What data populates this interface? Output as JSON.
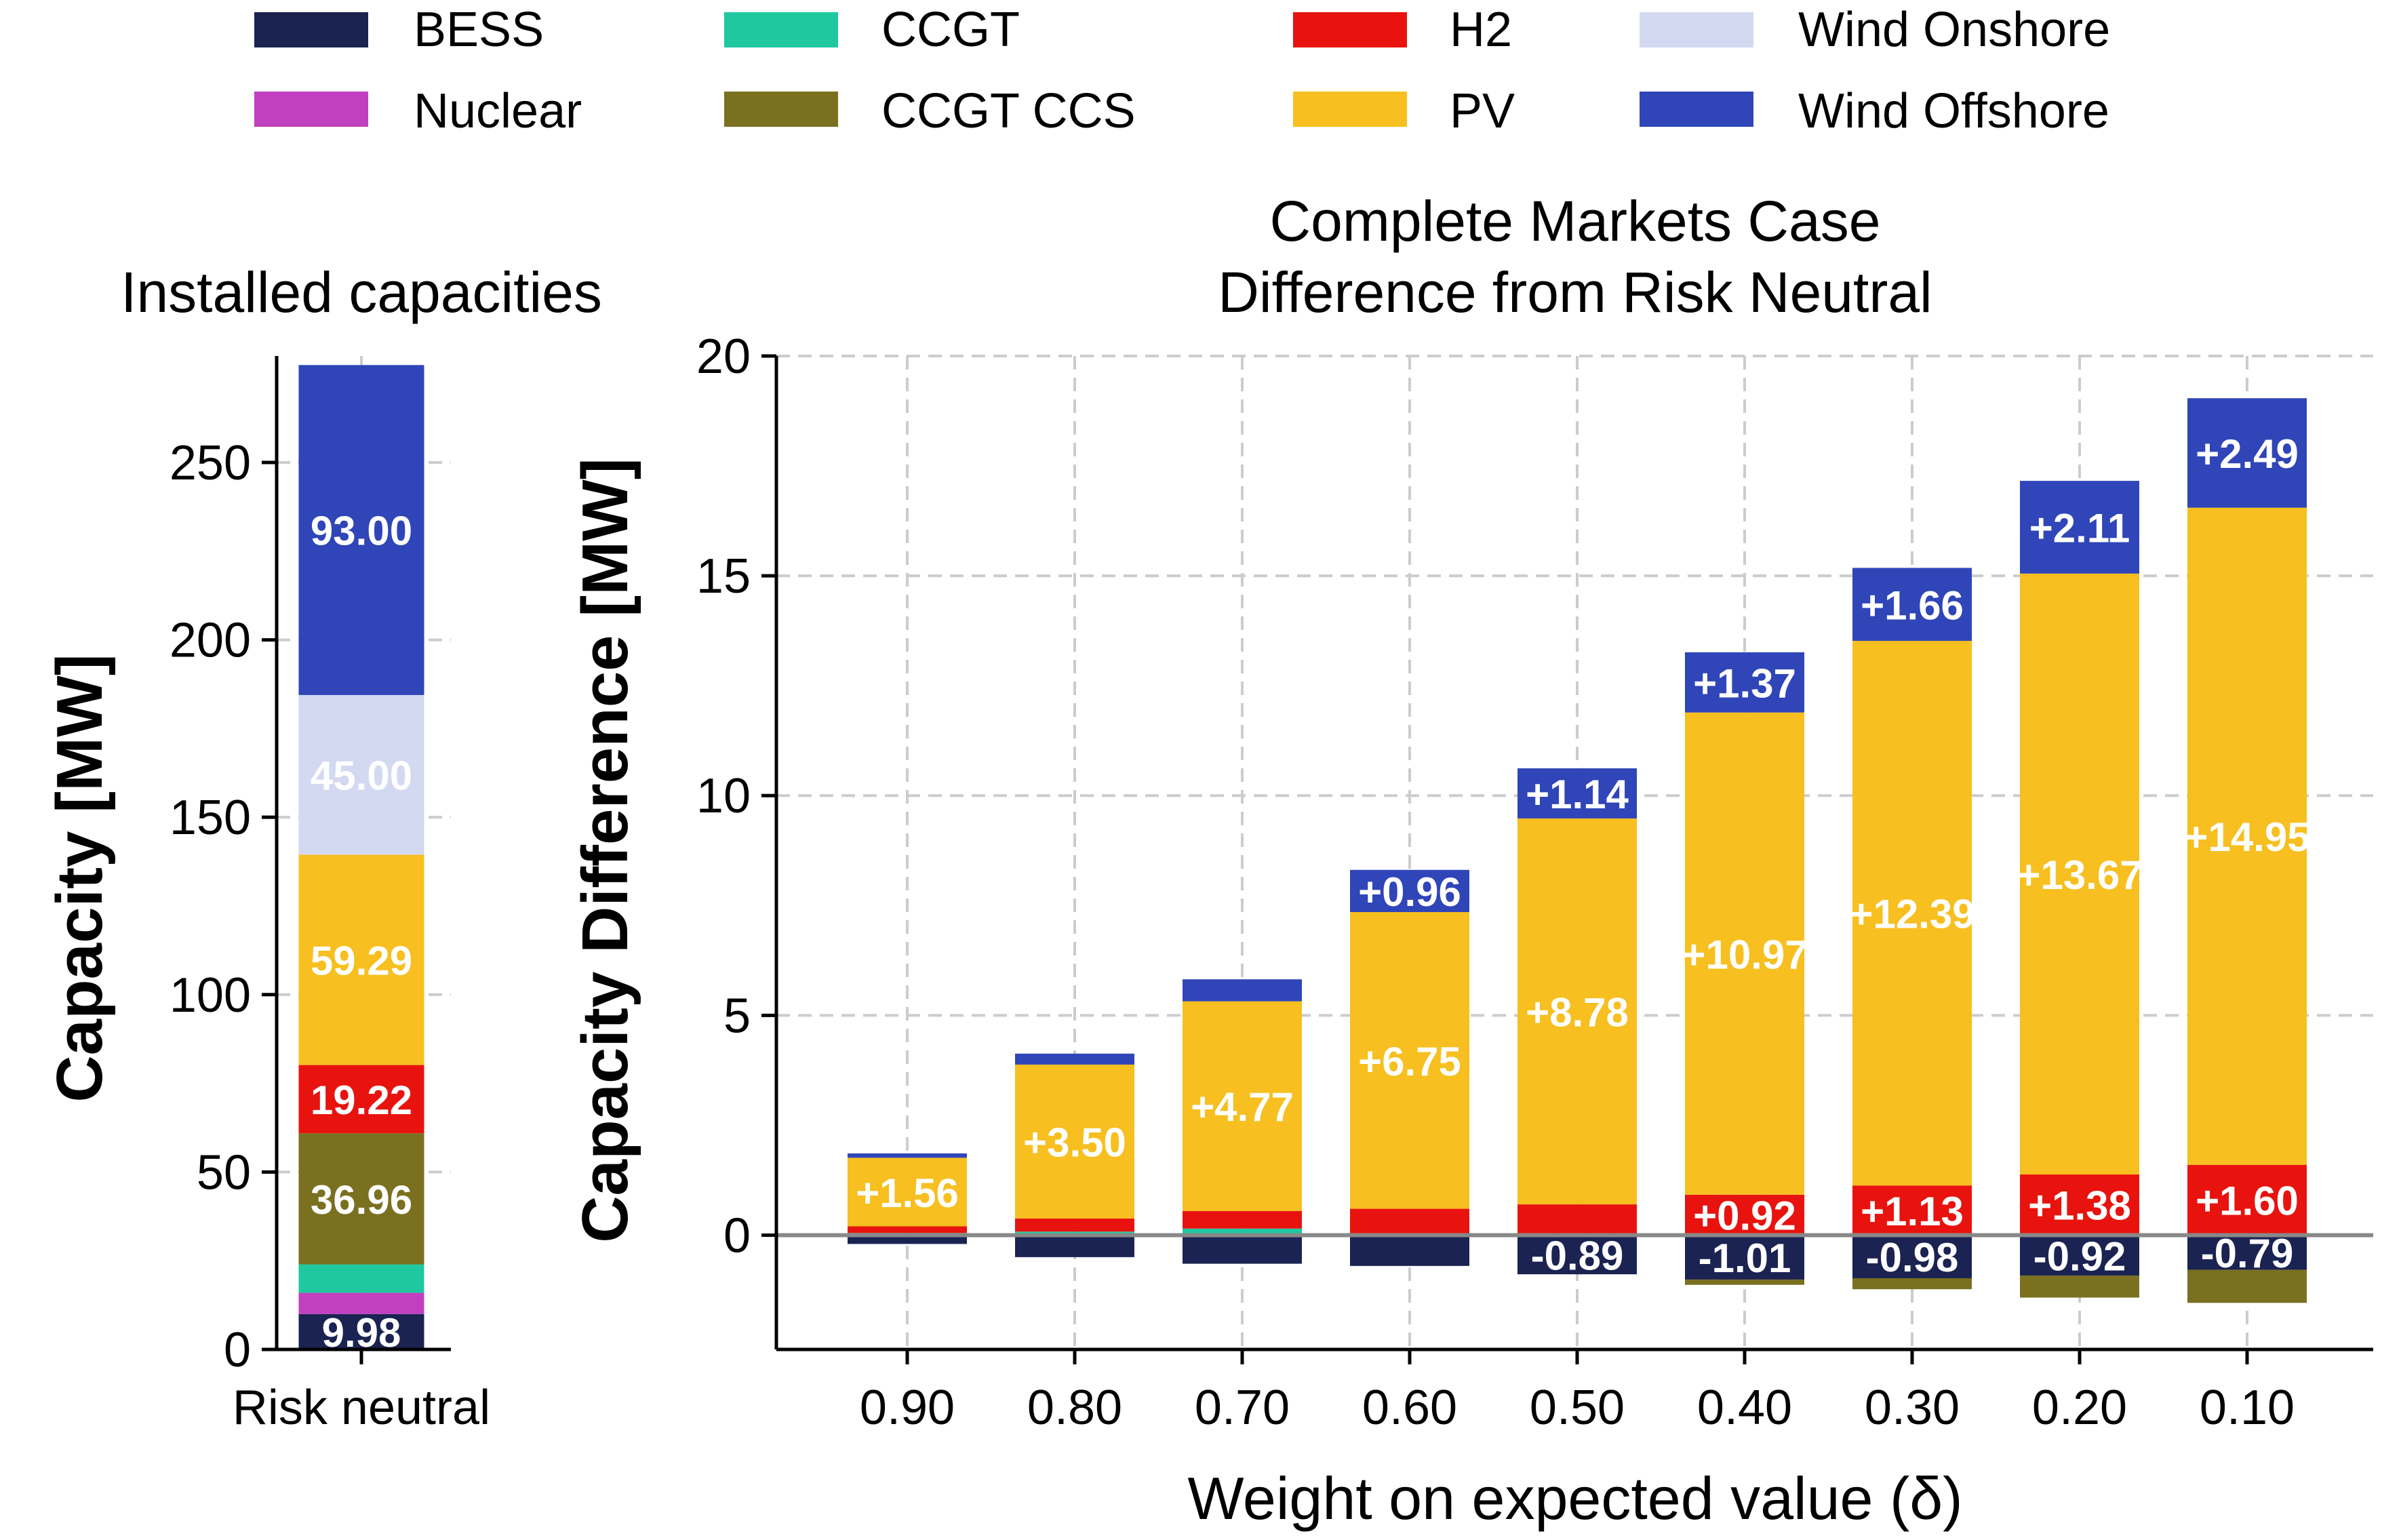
{
  "colors": {
    "BESS": "#1a2351",
    "Nuclear": "#c040c0",
    "CCGT": "#20c8a0",
    "CCGT CCS": "#7a7020",
    "H2": "#e8130e",
    "PV": "#f7bf1f",
    "Wind Onshore": "#d4d9f2",
    "Wind Offshore": "#2f45b8",
    "zero_line": "#888888"
  },
  "legend": {
    "entries": [
      "BESS",
      "Nuclear",
      "CCGT",
      "CCGT CCS",
      "H2",
      "PV",
      "Wind Onshore",
      "Wind Offshore"
    ]
  },
  "chart_data": [
    {
      "type": "bar",
      "stacked": true,
      "title": "Installed capacities",
      "xlabel": "",
      "ylabel": "Capacity [MW]",
      "ylim": [
        0,
        280
      ],
      "yticks": [
        "0",
        "50",
        "100",
        "150",
        "200",
        "250"
      ],
      "categories": [
        "Risk neutral"
      ],
      "series": [
        {
          "name": "BESS",
          "values": [
            9.98
          ]
        },
        {
          "name": "Nuclear",
          "values": [
            6.0
          ]
        },
        {
          "name": "CCGT",
          "values": [
            8.0
          ]
        },
        {
          "name": "CCGT CCS",
          "values": [
            36.96
          ]
        },
        {
          "name": "H2",
          "values": [
            19.22
          ]
        },
        {
          "name": "PV",
          "values": [
            59.29
          ]
        },
        {
          "name": "Wind Onshore",
          "values": [
            45.0
          ]
        },
        {
          "name": "Wind Offshore",
          "values": [
            93.0
          ]
        }
      ],
      "data_labels": [
        {
          "series": "BESS",
          "text": "9.98"
        },
        {
          "series": "CCGT CCS",
          "text": "36.96"
        },
        {
          "series": "H2",
          "text": "19.22"
        },
        {
          "series": "PV",
          "text": "59.29"
        },
        {
          "series": "Wind Onshore",
          "text": "45.00"
        },
        {
          "series": "Wind Offshore",
          "text": "93.00"
        }
      ],
      "grid": true
    },
    {
      "type": "bar",
      "stacked": true,
      "title": "Complete Markets Case\nDifference from Risk Neutral",
      "xlabel": "Weight on expected value (δ)",
      "ylabel": "Capacity Difference [MW]",
      "ylim": [
        -2.6,
        20
      ],
      "yticks": [
        "0",
        "5",
        "10",
        "15",
        "20"
      ],
      "categories": [
        "0.90",
        "0.80",
        "0.70",
        "0.60",
        "0.50",
        "0.40",
        "0.30",
        "0.20",
        "0.10"
      ],
      "series": [
        {
          "name": "BESS",
          "values": [
            -0.2,
            -0.5,
            -0.65,
            -0.7,
            -0.89,
            -1.01,
            -0.98,
            -0.92,
            -0.79
          ]
        },
        {
          "name": "CCGT CCS",
          "values": [
            0.0,
            0.0,
            0.0,
            0.0,
            0.0,
            -0.12,
            -0.25,
            -0.5,
            -0.75
          ]
        },
        {
          "name": "CCGT",
          "values": [
            0.05,
            0.08,
            0.15,
            0.02,
            0.0,
            0.0,
            0.0,
            0.0,
            0.0
          ]
        },
        {
          "name": "H2",
          "values": [
            0.15,
            0.3,
            0.4,
            0.58,
            0.7,
            0.92,
            1.13,
            1.38,
            1.6
          ]
        },
        {
          "name": "PV",
          "values": [
            1.56,
            3.5,
            4.77,
            6.75,
            8.78,
            10.97,
            12.39,
            13.67,
            14.95
          ]
        },
        {
          "name": "Wind Offshore",
          "values": [
            0.1,
            0.25,
            0.5,
            0.96,
            1.14,
            1.37,
            1.66,
            2.11,
            2.49
          ]
        }
      ],
      "data_labels": [
        {
          "series": "PV",
          "texts": [
            "+1.56",
            "+3.50",
            "+4.77",
            "+6.75",
            "+8.78",
            "+10.97",
            "+12.39",
            "+13.67",
            "+14.95"
          ]
        },
        {
          "series": "Wind Offshore",
          "texts": [
            "",
            "",
            "",
            "+0.96",
            "+1.14",
            "+1.37",
            "+1.66",
            "+2.11",
            "+2.49"
          ]
        },
        {
          "series": "H2",
          "texts": [
            "",
            "",
            "",
            "",
            "",
            "+0.92",
            "+1.13",
            "+1.38",
            "+1.60"
          ]
        },
        {
          "series": "BESS",
          "texts": [
            "",
            "",
            "",
            "",
            "-0.89",
            "-1.01",
            "-0.98",
            "-0.92",
            "-0.79"
          ]
        }
      ],
      "grid": true
    }
  ]
}
